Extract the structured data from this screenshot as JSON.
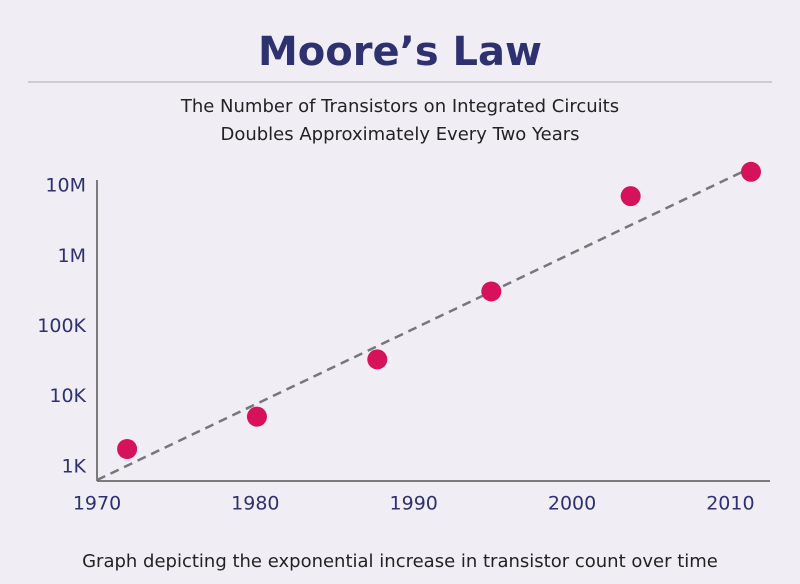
{
  "chart_data": {
    "type": "scatter",
    "title": "Moore’s Law",
    "subtitle": [
      "The Number of Transistors on Integrated Circuits",
      "Doubles Approximately Every Two Years"
    ],
    "caption": "Graph depicting the exponential increase in transistor count over time",
    "x": [
      1971.9,
      1980.1,
      1987.7,
      1994.9,
      2003.7,
      2011.3
    ],
    "values": [
      1800,
      5200,
      34000,
      316000,
      7200000,
      16000000
    ],
    "color": "#d6135a",
    "trend_line": {
      "x": [
        1970,
        2011
      ],
      "values": [
        650,
        17000000
      ],
      "color": "#777777"
    },
    "xlim": [
      1970,
      2012.5
    ],
    "xticks": [
      1970,
      1980,
      1990,
      2000,
      2010
    ],
    "ylim": [
      630,
      20000000
    ],
    "yscale": "log",
    "yticks": [
      {
        "value": 1000,
        "label": "1K"
      },
      {
        "value": 10000,
        "label": "10K"
      },
      {
        "value": 100000,
        "label": "100K"
      },
      {
        "value": 1000000,
        "label": "1M"
      },
      {
        "value": 10000000,
        "label": "10M"
      }
    ],
    "grid": false
  }
}
